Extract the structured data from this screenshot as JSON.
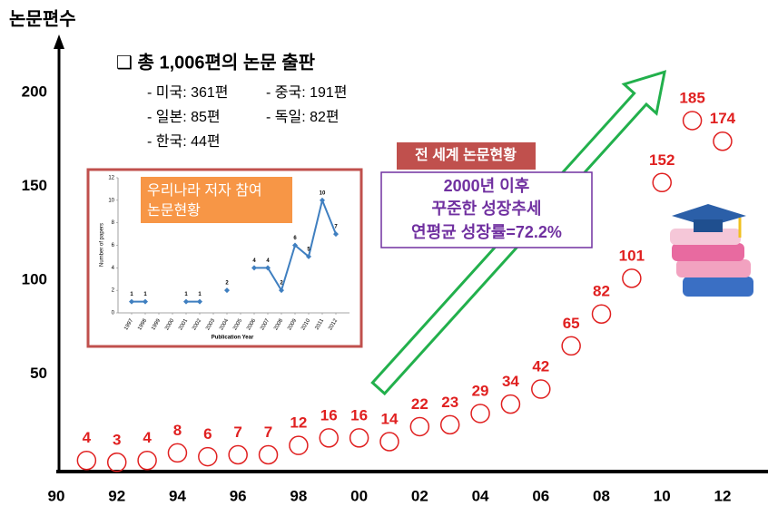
{
  "chart_data": [
    {
      "type": "scatter",
      "y_label": "논문편수",
      "x": [
        91,
        92,
        93,
        94,
        95,
        96,
        97,
        98,
        99,
        100,
        101,
        102,
        103,
        104,
        105,
        106,
        107,
        108,
        109,
        110,
        111,
        112
      ],
      "values": [
        4,
        3,
        4,
        8,
        6,
        7,
        7,
        12,
        16,
        16,
        14,
        22,
        23,
        29,
        34,
        42,
        65,
        82,
        101,
        152,
        185,
        174
      ],
      "color": "#e02020",
      "xlim": [
        90,
        113.5
      ],
      "xticks": [
        90,
        92,
        94,
        96,
        98,
        {
          "value": 100,
          "label": "00"
        },
        {
          "value": 102,
          "label": "02"
        },
        {
          "value": 104,
          "label": "04"
        },
        {
          "value": 106,
          "label": "06"
        },
        {
          "value": 108,
          "label": "08"
        },
        {
          "value": 110,
          "label": "10"
        },
        {
          "value": 112,
          "label": "12"
        }
      ],
      "ylim": [
        0,
        227
      ],
      "yticks": [
        50,
        100,
        150,
        200
      ],
      "headline": "❑ 총 1,006편의 논문 출판",
      "notes": [
        "- 미국: 361편",
        "- 중국: 191편",
        "- 일본: 85편",
        "- 독일: 82편",
        "- 한국: 44편"
      ],
      "badge": "전 세계 논문현황",
      "callout": [
        "2000년 이후",
        "꾸준한 성장추세",
        "연평균 성장률=72.2%"
      ]
    },
    {
      "type": "line",
      "title": [
        "우리나라 저자 참여",
        "논문현황"
      ],
      "x_label": "Publication Year",
      "y_label": "Number of papers",
      "x": [
        1997,
        1998,
        1999,
        2000,
        2001,
        2002,
        2003,
        2004,
        2005,
        2006,
        2007,
        2008,
        2009,
        2010,
        2011,
        2012
      ],
      "values": [
        1,
        1,
        null,
        null,
        1,
        1,
        null,
        2,
        null,
        4,
        4,
        2,
        6,
        5,
        10,
        7
      ],
      "color": "#3f7fc0",
      "xlim": [
        1996,
        2013
      ],
      "xticks": [
        1997,
        1998,
        1999,
        2000,
        2001,
        2002,
        2003,
        2004,
        2005,
        2006,
        2007,
        2008,
        2009,
        2010,
        2011,
        2012
      ],
      "ylim": [
        0,
        12
      ],
      "yticks": [
        0,
        2,
        4,
        6,
        8,
        10,
        12
      ]
    }
  ]
}
